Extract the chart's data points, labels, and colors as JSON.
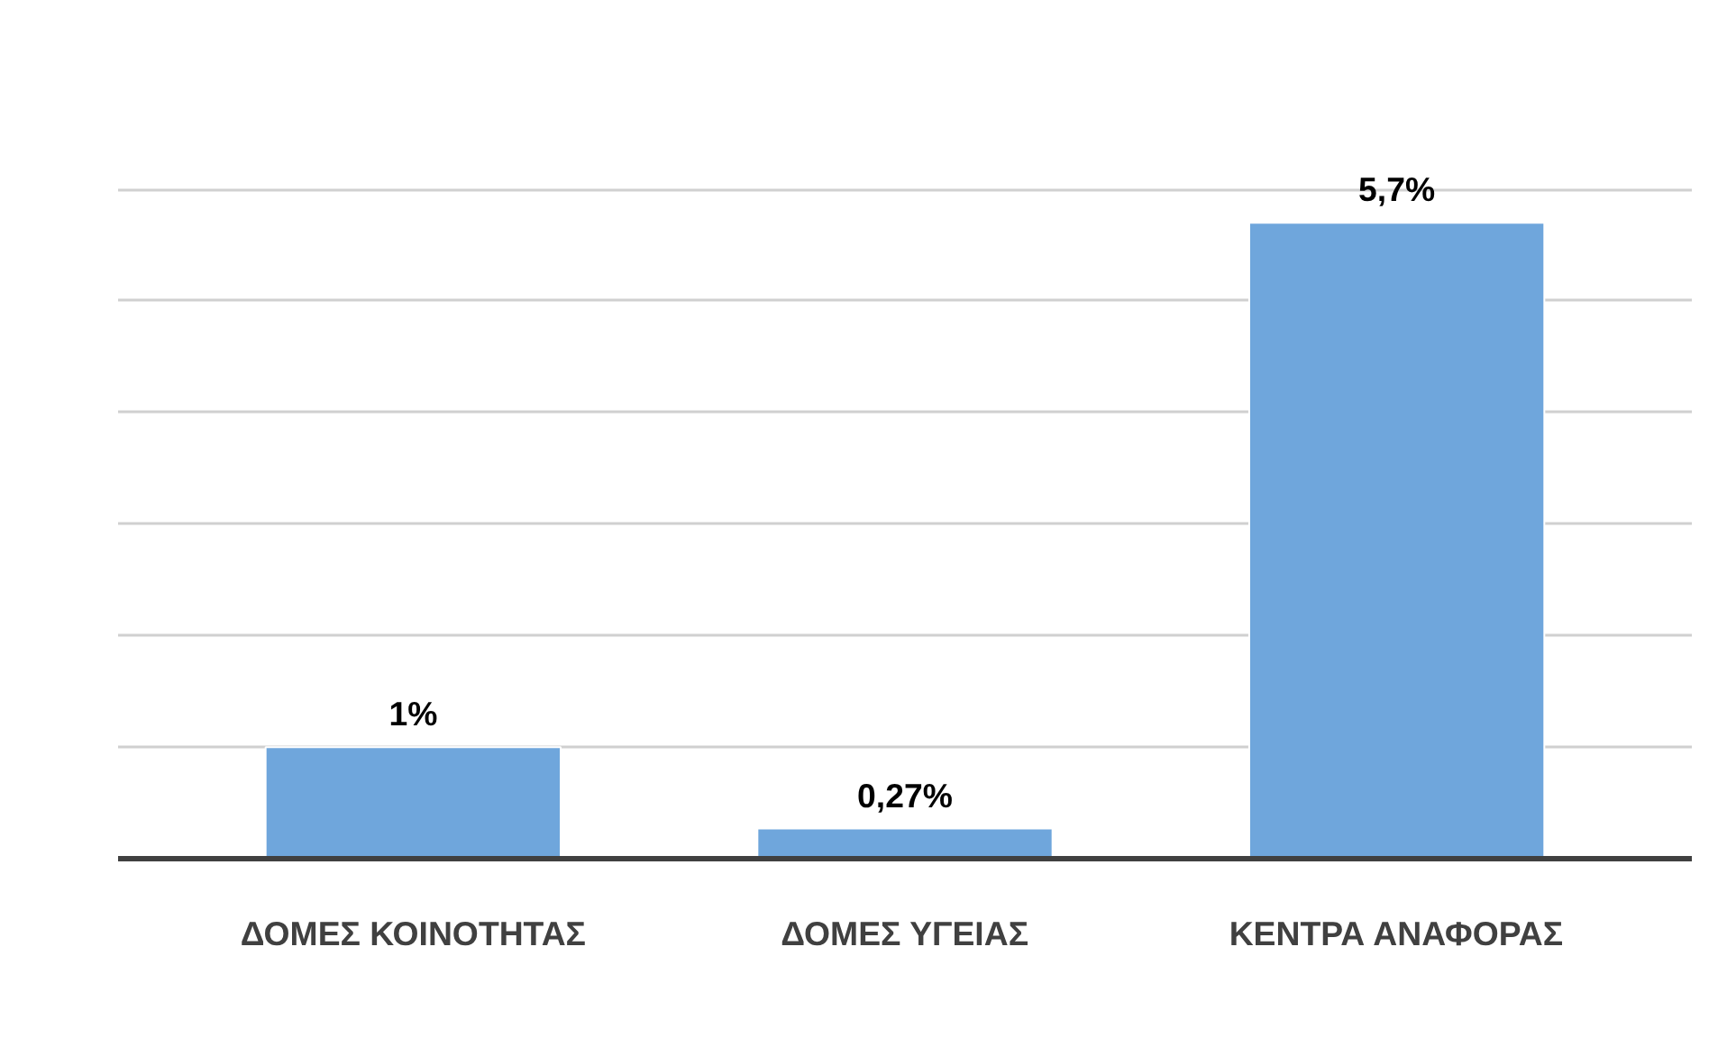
{
  "chart_data": {
    "type": "bar",
    "categories": [
      "ΔΟΜΕΣ ΚΟΙΝΟΤΗΤΑΣ",
      "ΔΟΜΕΣ ΥΓΕΙΑΣ",
      "ΚΕΝΤΡΑ ΑΝΑΦΟΡΑΣ"
    ],
    "values": [
      1,
      0.27,
      5.7
    ],
    "value_labels": [
      "1%",
      "0,27%",
      "5,7%"
    ],
    "color": "#6fa6dc",
    "yticks": [
      {
        "value": 0,
        "label": null
      },
      {
        "value": 1,
        "label": null
      },
      {
        "value": 2,
        "label": null
      },
      {
        "value": 3,
        "label": null
      },
      {
        "value": 4,
        "label": null
      },
      {
        "value": 5,
        "label": null
      },
      {
        "value": 6,
        "label": null
      }
    ],
    "grid": "y",
    "tick_labels": "x"
  }
}
